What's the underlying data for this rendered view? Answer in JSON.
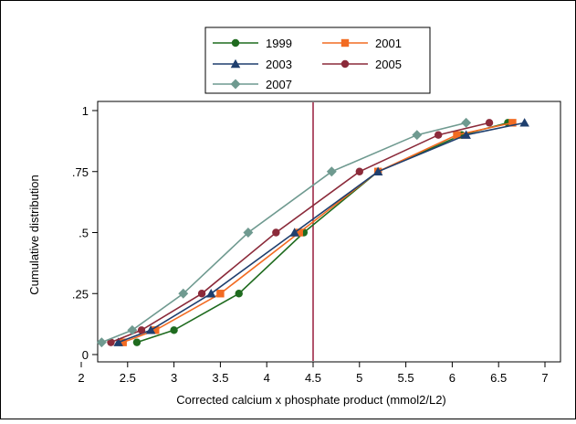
{
  "chart_data": {
    "type": "line",
    "title": "",
    "xlabel": "Corrected calcium x phosphate product (mmol2/L2)",
    "ylabel": "Cumulative distribution",
    "xlim": [
      2,
      7
    ],
    "ylim": [
      0,
      1
    ],
    "x_ticks": [
      "2",
      "2.5",
      "3",
      "3.5",
      "4",
      "4.5",
      "5",
      "5.5",
      "6",
      "6.5",
      "7"
    ],
    "y_ticks": [
      "0",
      ".25",
      ".5",
      ".75",
      "1"
    ],
    "grid": false,
    "legend_placement": "top-center",
    "reference_line": {
      "x": 4.5,
      "color": "#9e2a48"
    },
    "series": [
      {
        "name": "1999",
        "color": "#1f6b1f",
        "marker": "circle",
        "points": [
          [
            2.6,
            0.05
          ],
          [
            3.0,
            0.1
          ],
          [
            3.7,
            0.25
          ],
          [
            4.4,
            0.5
          ],
          [
            5.2,
            0.75
          ],
          [
            6.1,
            0.9
          ],
          [
            6.6,
            0.95
          ]
        ]
      },
      {
        "name": "2001",
        "color": "#f26b22",
        "marker": "square",
        "points": [
          [
            2.45,
            0.05
          ],
          [
            2.8,
            0.1
          ],
          [
            3.5,
            0.25
          ],
          [
            4.35,
            0.5
          ],
          [
            5.2,
            0.75
          ],
          [
            6.05,
            0.9
          ],
          [
            6.65,
            0.95
          ]
        ]
      },
      {
        "name": "2003",
        "color": "#1f3f6e",
        "marker": "triangle",
        "points": [
          [
            2.4,
            0.05
          ],
          [
            2.75,
            0.1
          ],
          [
            3.4,
            0.25
          ],
          [
            4.3,
            0.5
          ],
          [
            5.2,
            0.75
          ],
          [
            6.15,
            0.9
          ],
          [
            6.78,
            0.95
          ]
        ]
      },
      {
        "name": "2005",
        "color": "#8b2a3a",
        "marker": "circle",
        "points": [
          [
            2.32,
            0.05
          ],
          [
            2.65,
            0.1
          ],
          [
            3.3,
            0.25
          ],
          [
            4.1,
            0.5
          ],
          [
            5.0,
            0.75
          ],
          [
            5.85,
            0.9
          ],
          [
            6.4,
            0.95
          ]
        ]
      },
      {
        "name": "2007",
        "color": "#6f9a90",
        "marker": "diamond",
        "points": [
          [
            2.22,
            0.05
          ],
          [
            2.55,
            0.1
          ],
          [
            3.1,
            0.25
          ],
          [
            3.8,
            0.5
          ],
          [
            4.7,
            0.75
          ],
          [
            5.62,
            0.9
          ],
          [
            6.15,
            0.95
          ]
        ]
      }
    ]
  }
}
